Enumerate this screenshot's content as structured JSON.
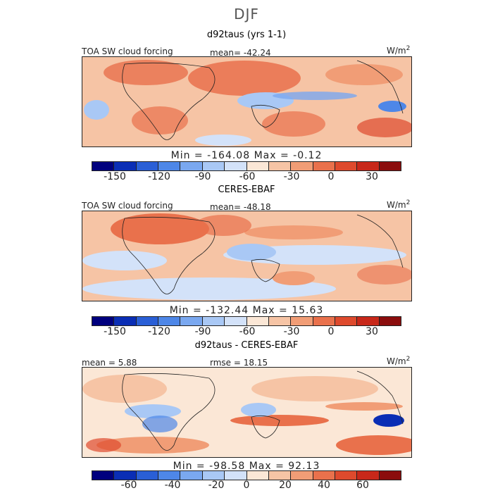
{
  "figure": {
    "title": "DJF"
  },
  "colors": [
    "#00007e",
    "#0a2eb5",
    "#2a5fd6",
    "#4e87e8",
    "#7aa8f0",
    "#a9c8f5",
    "#d3e2f9",
    "#fbe7d6",
    "#f6c4a5",
    "#f19d76",
    "#e9714c",
    "#de4a2d",
    "#c8281a",
    "#8b0d0d"
  ],
  "panels": [
    {
      "title": "d92taus (yrs 1-1)",
      "left_label": "TOA SW cloud forcing",
      "center_label": "mean= -42.24",
      "units": "W/m",
      "units_sup": "2",
      "minmax": "Min = -164.08 Max =  -0.12",
      "ticks": [
        "-150",
        "-120",
        "-90",
        "-60",
        "-30",
        "0",
        "30"
      ]
    },
    {
      "title": "CERES-EBAF",
      "left_label": "TOA SW cloud forcing",
      "center_label": "mean= -48.18",
      "units": "W/m",
      "units_sup": "2",
      "minmax": "Min = -132.44 Max =  15.63",
      "ticks": [
        "-150",
        "-120",
        "-90",
        "-60",
        "-30",
        "0",
        "30"
      ]
    },
    {
      "title": "d92taus - CERES-EBAF",
      "left_label": "mean =  5.88",
      "center_label": "rmse =  18.15",
      "units": "W/m",
      "units_sup": "2",
      "minmax": "Min = -98.58 Max =  92.13",
      "ticks": [
        "-60",
        "-40",
        "-20",
        "0",
        "20",
        "40",
        "60"
      ]
    }
  ]
}
